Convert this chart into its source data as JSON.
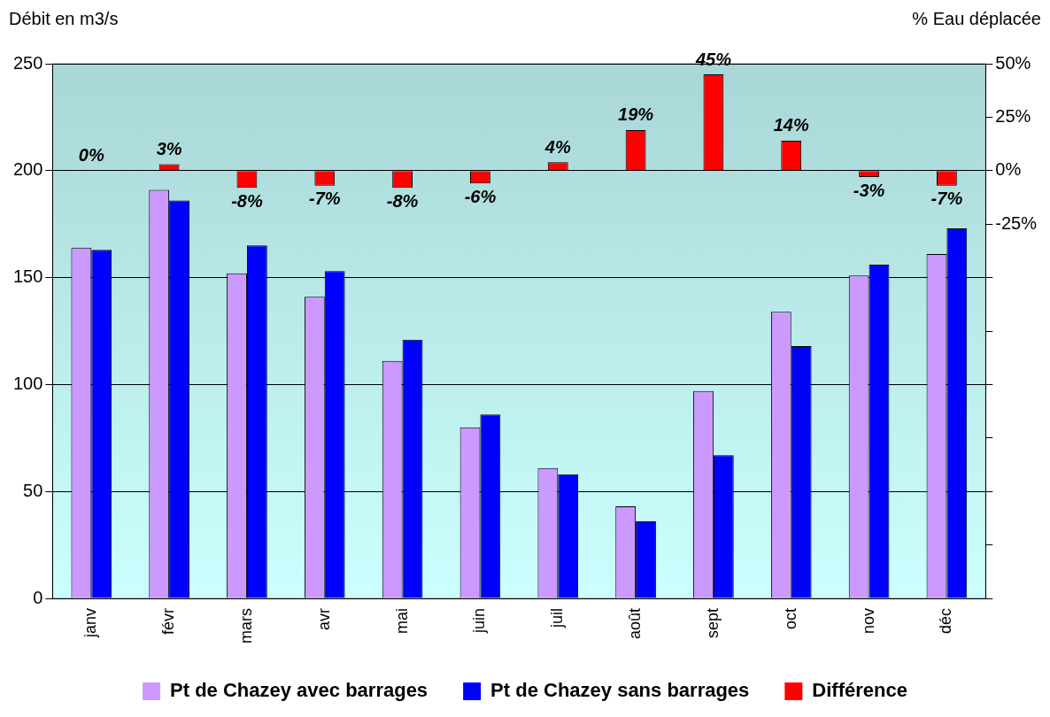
{
  "chart_data": {
    "type": "bar",
    "ylabel": "Débit en m3/s",
    "y2label": "% Eau déplacée",
    "categories": [
      "janv",
      "févr",
      "mars",
      "avr",
      "mai",
      "juin",
      "juil",
      "août",
      "sept",
      "oct",
      "nov",
      "déc"
    ],
    "series": [
      {
        "name": "Pt de Chazey avec barrages",
        "color": "#cc99ff",
        "values": [
          164,
          191,
          152,
          141,
          111,
          80,
          61,
          43,
          97,
          134,
          151,
          161
        ]
      },
      {
        "name": "Pt de Chazey sans barrages",
        "color": "#0000ff",
        "values": [
          163,
          186,
          165,
          153,
          121,
          86,
          58,
          36,
          67,
          118,
          156,
          173
        ]
      },
      {
        "name": "Différence",
        "color": "#ff0000",
        "axis": "y2",
        "values": [
          0,
          3,
          -8,
          -7,
          -8,
          -6,
          4,
          19,
          45,
          14,
          -3,
          -7
        ],
        "value_labels": [
          "0%",
          "3%",
          "-8%",
          "-7%",
          "-8%",
          "-6%",
          "4%",
          "19%",
          "45%",
          "14%",
          "-3%",
          "-7%"
        ]
      }
    ],
    "ylim": [
      0,
      250
    ],
    "yticks": [
      0,
      50,
      100,
      150,
      200,
      250
    ],
    "y2lim": [
      -200,
      50
    ],
    "y2ticks": [
      {
        "value": 50,
        "label": "50%"
      },
      {
        "value": 25,
        "label": "25%"
      },
      {
        "value": 0,
        "label": "0%"
      },
      {
        "value": -25,
        "label": "-25%"
      },
      {
        "value": -50,
        "label": null
      },
      {
        "value": -75,
        "label": null
      },
      {
        "value": -100,
        "label": null
      },
      {
        "value": -125,
        "label": null
      },
      {
        "value": -150,
        "label": null
      },
      {
        "value": -175,
        "label": null
      },
      {
        "value": -200,
        "label": null
      }
    ],
    "grid": "y",
    "legend": "bottom"
  }
}
